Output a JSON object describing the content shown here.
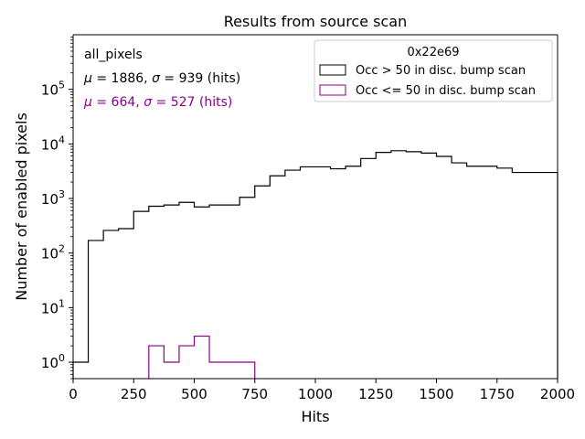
{
  "chart_data": {
    "type": "histogram",
    "title": "Results from source scan",
    "xlabel": "Hits",
    "ylabel": "Number of enabled pixels",
    "xlim": [
      0,
      2000
    ],
    "ylim": [
      0.5,
      1000000
    ],
    "yscale": "log",
    "xticks": [
      0,
      250,
      500,
      750,
      1000,
      1250,
      1500,
      1750,
      2000
    ],
    "xtick_labels": [
      "0",
      "250",
      "500",
      "750",
      "1000",
      "1250",
      "1500",
      "1750",
      "2000"
    ],
    "yticks": [
      1,
      10,
      100,
      1000,
      10000,
      100000
    ],
    "ytick_labels": [
      {
        "base": "10",
        "exp": "0"
      },
      {
        "base": "10",
        "exp": "1"
      },
      {
        "base": "10",
        "exp": "2"
      },
      {
        "base": "10",
        "exp": "3"
      },
      {
        "base": "10",
        "exp": "4"
      },
      {
        "base": "10",
        "exp": "5"
      }
    ],
    "bin_edges": [
      0,
      62.5,
      125,
      187.5,
      250,
      312.5,
      375,
      437.5,
      500,
      562.5,
      625,
      687.5,
      750,
      812.5,
      875,
      937.5,
      1000,
      1062.5,
      1125,
      1187.5,
      1250,
      1312.5,
      1375,
      1437.5,
      1500,
      1562.5,
      1625,
      1687.5,
      1750,
      1812.5,
      1875,
      1937.5,
      2000
    ],
    "series": [
      {
        "name": "Occ > 50 in disc. bump scan",
        "color": "#000000",
        "values": [
          1,
          170,
          260,
          280,
          580,
          720,
          760,
          850,
          700,
          760,
          760,
          1050,
          1700,
          2600,
          3300,
          3800,
          3800,
          3500,
          3900,
          5400,
          7000,
          7500,
          7200,
          6800,
          5900,
          4500,
          3900,
          3900,
          3600,
          3000,
          3000,
          3000
        ]
      },
      {
        "name": "Occ <= 50 in disc. bump scan",
        "color": "#8b008b",
        "values": [
          0,
          0,
          0,
          0,
          0,
          2,
          1,
          2,
          3,
          1,
          1,
          1,
          0,
          0,
          0,
          0,
          0,
          0,
          0,
          0,
          0,
          0,
          0,
          0,
          0,
          0,
          0,
          0,
          0,
          0,
          0,
          0
        ]
      }
    ],
    "annotations": [
      {
        "id": "label",
        "text": "all_pixels",
        "color": "#000000"
      },
      {
        "id": "stats_black",
        "mu_sym": "μ",
        "mu_text": " = 1886, ",
        "sigma_sym": "σ",
        "sigma_text": " = 939 (hits)",
        "color": "#000000"
      },
      {
        "id": "stats_purple",
        "mu_sym": "μ",
        "mu_text": " = 664, ",
        "sigma_sym": "σ",
        "sigma_text": " = 527 (hits)",
        "color": "#8b008b"
      }
    ],
    "legend": {
      "title": "0x22e69",
      "placement": "top-right"
    }
  }
}
